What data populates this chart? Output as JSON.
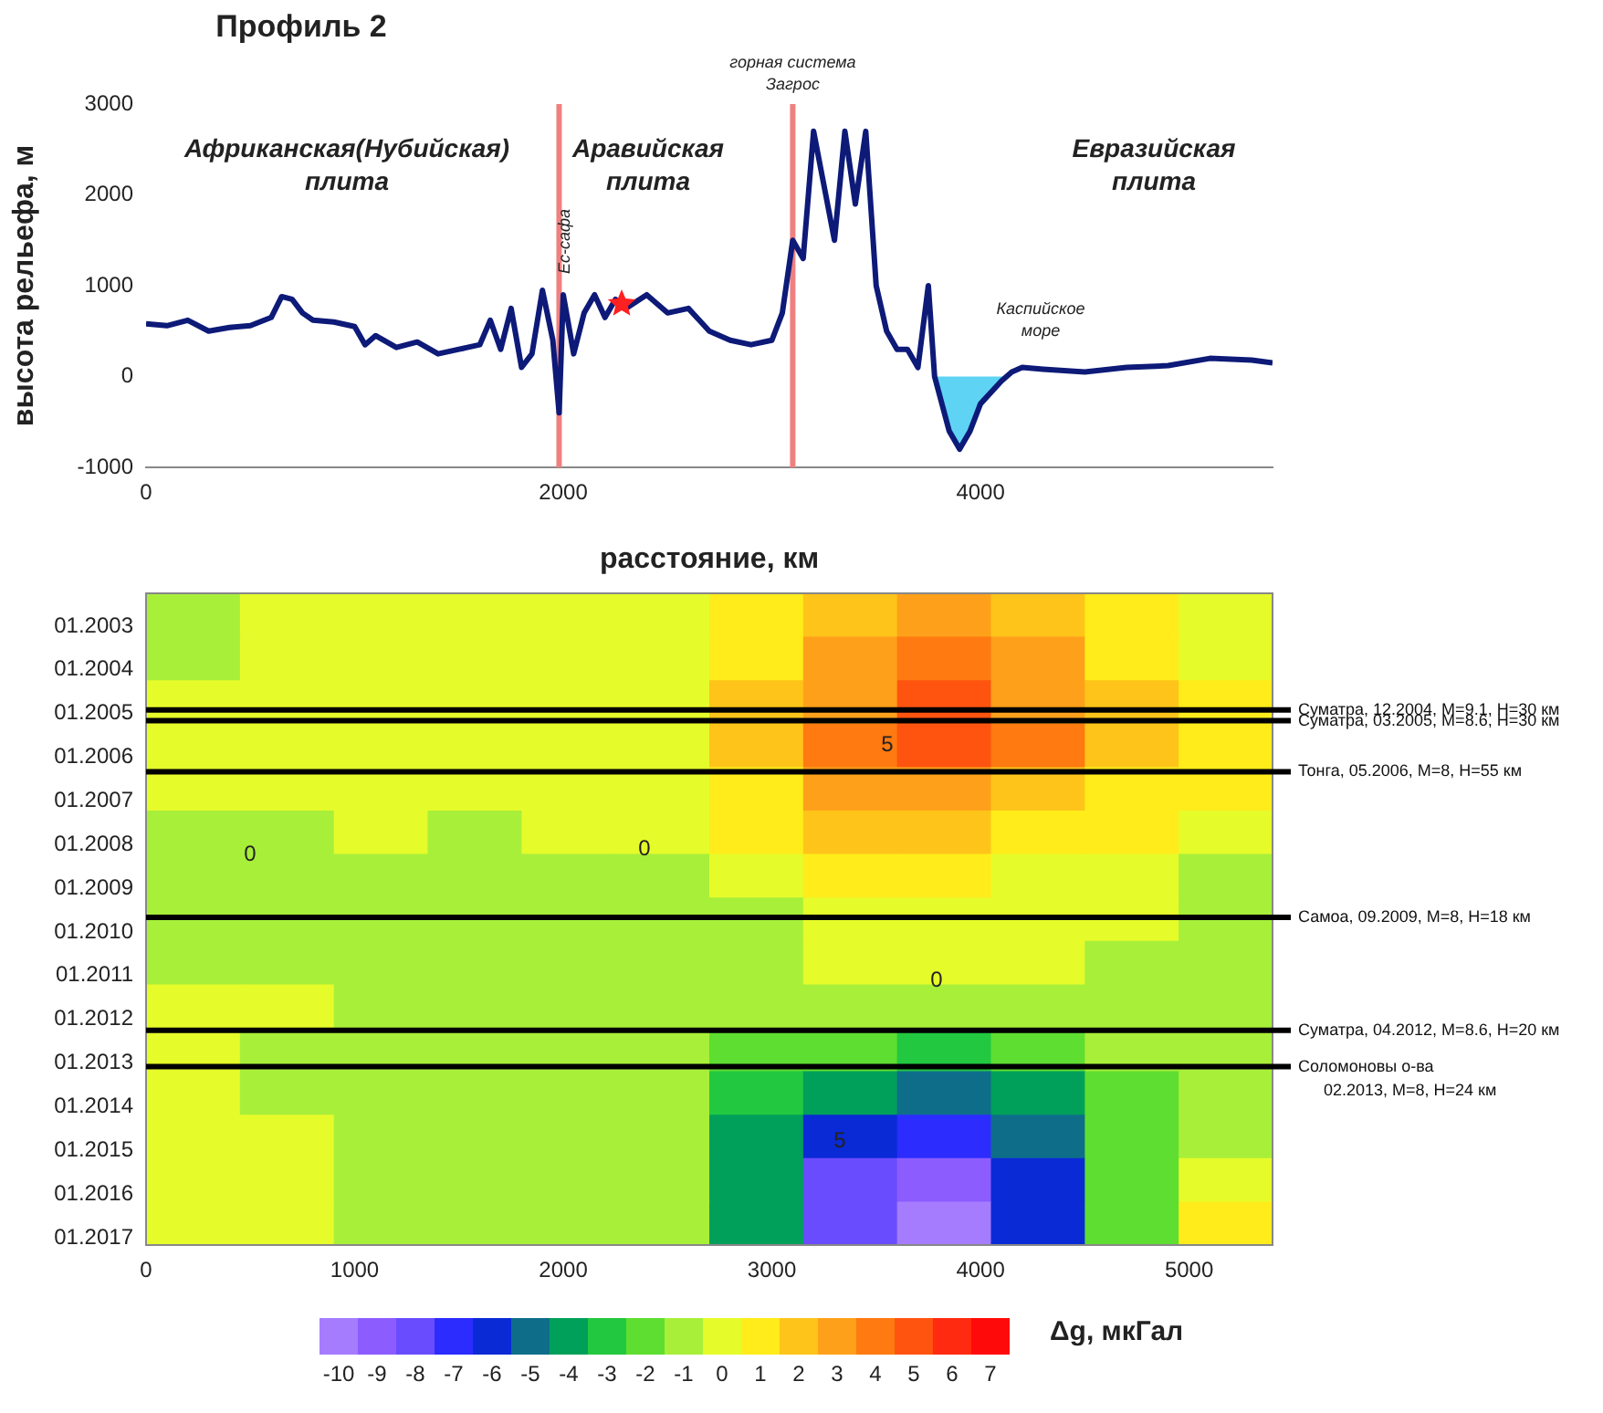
{
  "chart_data": [
    {
      "type": "line",
      "title": "Профиль 2",
      "xlabel": "расстояние, км",
      "ylabel": "высота рельефа, м",
      "xlim": [
        0,
        5400
      ],
      "xticks": [
        0,
        2000,
        4000
      ],
      "ylim": [
        -1000,
        3000
      ],
      "yticks": [
        -1000,
        0,
        1000,
        2000,
        3000
      ],
      "marker": "none",
      "series": [
        {
          "color": "#0d1a78",
          "x": [
            0,
            100,
            200,
            300,
            400,
            500,
            600,
            650,
            700,
            750,
            800,
            900,
            1000,
            1050,
            1100,
            1200,
            1300,
            1400,
            1500,
            1600,
            1650,
            1700,
            1750,
            1800,
            1850,
            1900,
            1950,
            1980,
            2000,
            2050,
            2100,
            2150,
            2200,
            2250,
            2300,
            2400,
            2500,
            2600,
            2700,
            2800,
            2900,
            3000,
            3050,
            3100,
            3150,
            3200,
            3250,
            3300,
            3350,
            3400,
            3450,
            3500,
            3550,
            3600,
            3650,
            3700,
            3750,
            3780,
            3850,
            3900,
            3950,
            4000,
            4100,
            4150,
            4200,
            4300,
            4500,
            4700,
            4900,
            5100,
            5300,
            5400
          ],
          "values": [
            580,
            560,
            620,
            500,
            540,
            560,
            650,
            880,
            850,
            700,
            620,
            600,
            550,
            350,
            450,
            320,
            380,
            250,
            300,
            350,
            620,
            300,
            750,
            100,
            250,
            950,
            400,
            -400,
            900,
            250,
            700,
            900,
            650,
            850,
            750,
            900,
            700,
            750,
            500,
            400,
            350,
            400,
            700,
            1500,
            1300,
            2700,
            2100,
            1500,
            2700,
            1900,
            2700,
            1000,
            500,
            300,
            300,
            100,
            1000,
            0,
            -600,
            -800,
            -600,
            -300,
            -50,
            50,
            100,
            80,
            50,
            100,
            120,
            200,
            180,
            150
          ]
        },
        {
          "type": "area",
          "color": "#5fd3f3",
          "x": [
            3780,
            3850,
            3900,
            3950,
            4000,
            4100,
            4130
          ],
          "values": [
            0,
            -600,
            -800,
            -600,
            -300,
            -50,
            0
          ]
        },
        {
          "type": "scatter",
          "color": "#ff2020",
          "marker": "star",
          "x": [
            2280
          ],
          "values": [
            800
          ]
        }
      ],
      "ref_lines": [
        {
          "axis": "x",
          "value": 1980,
          "color": "#f08080"
        },
        {
          "axis": "x",
          "value": 3100,
          "color": "#f08080",
          "label": "горная система\nЗагрос"
        }
      ],
      "annotations": [
        "Африканская(Нубийская)\nплита",
        "Аравийская\nплита",
        "Евразийская\nплита",
        "Каспийское\nморе",
        "Ес-сафа"
      ]
    },
    {
      "type": "heatmap",
      "clabel": "Δg, мкГал",
      "xlim": [
        0,
        5400
      ],
      "xticks": [
        0,
        1000,
        2000,
        3000,
        4000,
        5000
      ],
      "ylim": [
        "2017-03",
        "2002-04"
      ],
      "yticks": [
        {
          "value": "2003-01",
          "label": "01.2003"
        },
        {
          "value": "2004-01",
          "label": "01.2004"
        },
        {
          "value": "2005-01",
          "label": "01.2005"
        },
        {
          "value": "2006-01",
          "label": "01.2006"
        },
        {
          "value": "2007-01",
          "label": "01.2007"
        },
        {
          "value": "2008-01",
          "label": "01.2008"
        },
        {
          "value": "2009-01",
          "label": "01.2009"
        },
        {
          "value": "2010-01",
          "label": "01.2010"
        },
        {
          "value": "2011-01",
          "label": "01.2011"
        },
        {
          "value": "2012-01",
          "label": "01.2012"
        },
        {
          "value": "2013-01",
          "label": "01.2013"
        },
        {
          "value": "2014-01",
          "label": "01.2014"
        },
        {
          "value": "2015-01",
          "label": "01.2015"
        },
        {
          "value": "2016-01",
          "label": "01.2016"
        },
        {
          "value": "2017-01",
          "label": "01.2017"
        }
      ],
      "clim": [
        -10.5,
        7.5
      ],
      "cticks": [
        -10,
        -9,
        -8,
        -7,
        -6,
        -5,
        -4,
        -3,
        -2,
        -1,
        0,
        1,
        2,
        3,
        4,
        5,
        6,
        7
      ],
      "colors": [
        "#a67cff",
        "#8c5cff",
        "#6a4cff",
        "#2c2cff",
        "#0a2ad6",
        "#0e6e8a",
        "#00a05a",
        "#22c840",
        "#5ede30",
        "#a8ef3a",
        "#e6fb2a",
        "#ffec1a",
        "#ffc41a",
        "#ffa01a",
        "#ff7a10",
        "#ff5410",
        "#ff2a10",
        "#ff0a0a"
      ],
      "cells": [
        [
          -1,
          0,
          0,
          0,
          0,
          0,
          1,
          2,
          3,
          2,
          1,
          0
        ],
        [
          -1,
          0,
          0,
          0,
          0,
          0,
          1,
          3,
          4,
          3,
          1,
          0
        ],
        [
          0,
          0,
          0,
          0,
          0,
          0,
          2,
          3,
          5,
          3,
          2,
          1
        ],
        [
          0,
          0,
          0,
          0,
          0,
          0,
          2,
          4,
          5,
          4,
          2,
          1
        ],
        [
          0,
          0,
          0,
          0,
          0,
          0,
          1,
          3,
          3,
          2,
          1,
          1
        ],
        [
          -1,
          -1,
          0,
          -1,
          0,
          0,
          1,
          2,
          2,
          1,
          1,
          0
        ],
        [
          -1,
          -1,
          -1,
          -1,
          -1,
          -1,
          0,
          1,
          1,
          0,
          0,
          -1
        ],
        [
          -1,
          -1,
          -1,
          -1,
          -1,
          -1,
          -1,
          0,
          0,
          0,
          0,
          -1
        ],
        [
          -1,
          -1,
          -1,
          -1,
          -1,
          -1,
          -1,
          0,
          0,
          0,
          -1,
          -1
        ],
        [
          0,
          0,
          -1,
          -1,
          -1,
          -1,
          -1,
          -1,
          -1,
          -1,
          -1,
          -1
        ],
        [
          0,
          -1,
          -1,
          -1,
          -1,
          -1,
          -2,
          -2,
          -3,
          -2,
          -1,
          -1
        ],
        [
          0,
          -1,
          -1,
          -1,
          -1,
          -1,
          -3,
          -4,
          -5,
          -4,
          -2,
          -1
        ],
        [
          0,
          0,
          -1,
          -1,
          -1,
          -1,
          -4,
          -6,
          -7,
          -5,
          -2,
          -1
        ],
        [
          0,
          0,
          -1,
          -1,
          -1,
          -1,
          -4,
          -8,
          -9,
          -6,
          -2,
          0
        ],
        [
          0,
          0,
          -1,
          -1,
          -1,
          -1,
          -4,
          -8,
          -10,
          -6,
          -2,
          1
        ]
      ],
      "ref_lines": [
        {
          "axis": "y",
          "value": "2004-12",
          "color": "#000000",
          "label": "Суматра, 12.2004, M=9.1, H=30 км"
        },
        {
          "axis": "y",
          "value": "2005-03",
          "color": "#000000",
          "label": "Суматра, 03.2005, M=8.6, H=30 км"
        },
        {
          "axis": "y",
          "value": "2006-05",
          "color": "#000000",
          "label": "Тонга, 05.2006, M=8, H=55 км"
        },
        {
          "axis": "y",
          "value": "2009-09",
          "color": "#000000",
          "label": "Самоа, 09.2009, M=8, H=18 км"
        },
        {
          "axis": "y",
          "value": "2012-04",
          "color": "#000000",
          "label": "Суматра, 04.2012, M=8.6, H=20 км"
        },
        {
          "axis": "y",
          "value": "2013-02",
          "color": "#000000",
          "label": "Соломоновы о-ва\n02.2013, M=8, H=24 км"
        }
      ],
      "annotations": [
        "0",
        "0",
        "0",
        "5",
        "5"
      ]
    }
  ]
}
